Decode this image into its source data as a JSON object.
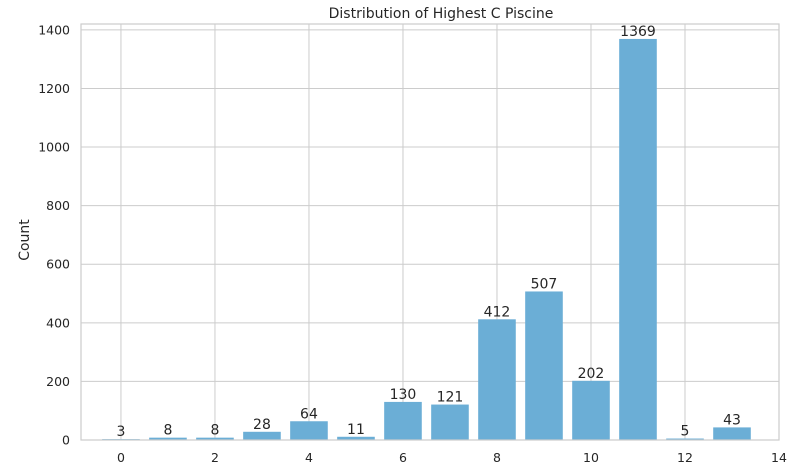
{
  "chart_data": {
    "type": "bar",
    "title": "Distribution of Highest C Piscine",
    "xlabel": "",
    "ylabel": "Count",
    "x": [
      0,
      1,
      2,
      3,
      4,
      5,
      6,
      7,
      8,
      9,
      10,
      11,
      12,
      13
    ],
    "values": [
      3,
      8,
      8,
      28,
      64,
      11,
      130,
      121,
      412,
      507,
      202,
      1369,
      5,
      43
    ],
    "data_labels": [
      "3",
      "8",
      "8",
      "28",
      "64",
      "11",
      "130",
      "121",
      "412",
      "507",
      "202",
      "1369",
      "5",
      "43"
    ],
    "xlim": [
      -0.85,
      14
    ],
    "ylim": [
      0,
      1420
    ],
    "xticks": [
      0,
      2,
      4,
      6,
      8,
      10,
      12,
      14
    ],
    "yticks": [
      0,
      200,
      400,
      600,
      800,
      1000,
      1200,
      1400
    ],
    "grid": true,
    "bar_color": "#6baed6",
    "grid_color": "#cccccc",
    "axis_color": "#cccccc"
  }
}
